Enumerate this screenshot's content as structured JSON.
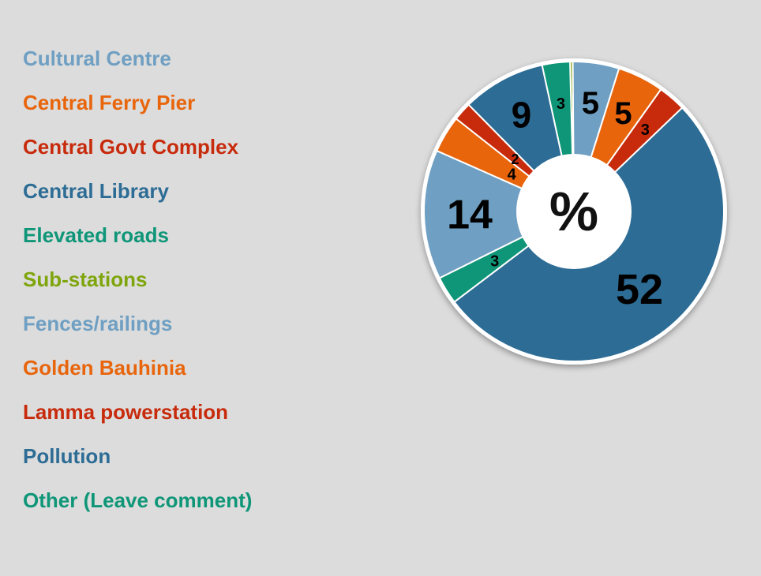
{
  "chart_data": {
    "type": "pie",
    "center_label": "%",
    "categories": [
      "Cultural Centre",
      "Central Ferry Pier",
      "Central Govt Complex",
      "Central Library",
      "Elevated roads",
      "Sub-stations",
      "Fences/railings",
      "Golden Bauhinia",
      "Lamma powerstation",
      "Pollution",
      "Other (Leave comment)"
    ],
    "legend_colors": [
      "#6f9fc2",
      "#e8650c",
      "#c72b0c",
      "#2d6c95",
      "#0f9678",
      "#7fa50d",
      "#6f9fc2",
      "#e8650c",
      "#c72b0c",
      "#2d6c95",
      "#0f9678"
    ],
    "slices": [
      {
        "value": 0.3,
        "label": "",
        "color": "#7fa50d"
      },
      {
        "value": 5,
        "label": "5",
        "color": "#6f9fc2"
      },
      {
        "value": 5,
        "label": "5",
        "color": "#e8650c"
      },
      {
        "value": 3,
        "label": "3",
        "color": "#c72b0c"
      },
      {
        "value": 52,
        "label": "52",
        "color": "#2d6c95"
      },
      {
        "value": 3,
        "label": "3",
        "color": "#0f9678"
      },
      {
        "value": 14,
        "label": "14",
        "color": "#6f9fc2"
      },
      {
        "value": 4,
        "label": "4",
        "color": "#e8650c"
      },
      {
        "value": 2,
        "label": "2",
        "color": "#c72b0c"
      },
      {
        "value": 9,
        "label": "9",
        "color": "#2d6c95"
      },
      {
        "value": 3,
        "label": "3",
        "color": "#0f9678"
      }
    ]
  }
}
